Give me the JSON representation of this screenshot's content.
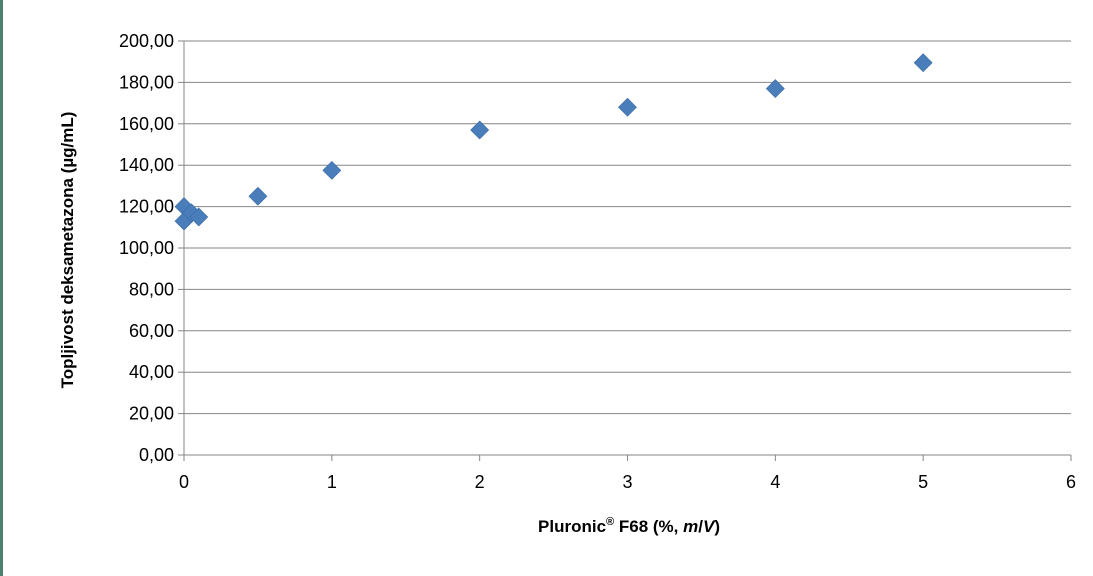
{
  "chart_data": {
    "type": "scatter",
    "title": "",
    "xlabel": {
      "prefix": "Pluronic",
      "sup": "®",
      "mid": " F68 (%, ",
      "em1": "m",
      "slash": "/",
      "em2": "V",
      "suffix": ")"
    },
    "ylabel": "Topljivost  deksametazona  (µg/mL)",
    "xlim": [
      0,
      6
    ],
    "ylim": [
      0,
      200
    ],
    "x_ticks": [
      0,
      1,
      2,
      3,
      4,
      5,
      6
    ],
    "y_ticks": [
      0,
      20,
      40,
      60,
      80,
      100,
      120,
      140,
      160,
      180,
      200
    ],
    "x_tick_labels": [
      "0",
      "1",
      "2",
      "3",
      "4",
      "5",
      "6"
    ],
    "y_tick_labels": [
      "0,00",
      "20,00",
      "40,00",
      "60,00",
      "80,00",
      "100,00",
      "120,00",
      "140,00",
      "160,00",
      "180,00",
      "200,00"
    ],
    "grid": true,
    "legend": "none",
    "marker": "diamond",
    "series": [
      {
        "color": "#4a7ebb",
        "points": [
          {
            "x": 0,
            "y": 120
          },
          {
            "x": 0,
            "y": 113
          },
          {
            "x": 0.05,
            "y": 117
          },
          {
            "x": 0.1,
            "y": 115
          },
          {
            "x": 0.5,
            "y": 125
          },
          {
            "x": 1,
            "y": 137.5
          },
          {
            "x": 2,
            "y": 157
          },
          {
            "x": 3,
            "y": 168
          },
          {
            "x": 4,
            "y": 177
          },
          {
            "x": 5,
            "y": 189.5
          }
        ]
      }
    ]
  }
}
